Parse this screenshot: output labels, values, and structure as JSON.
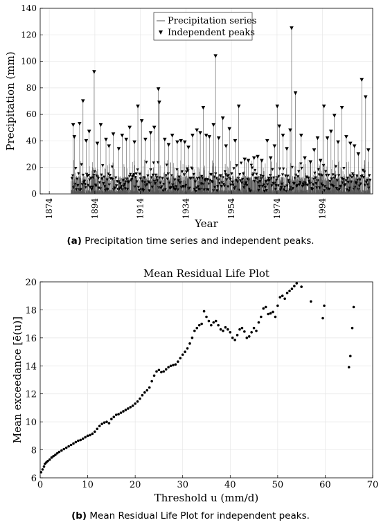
{
  "captions": {
    "a_tag": "(a)",
    "a_text": " Precipitation time series and independent peaks.",
    "b_tag": "(b)",
    "b_text": " Mean Residual Life Plot for independent peaks."
  },
  "chart_data": [
    {
      "type": "line",
      "title": "",
      "xlabel": "Year",
      "ylabel": "Precipitation (mm)",
      "xlim": [
        1870,
        2016
      ],
      "ylim": [
        0,
        140
      ],
      "xticks": [
        1874,
        1894,
        1914,
        1934,
        1954,
        1974,
        1994
      ],
      "yticks": [
        0,
        20,
        40,
        60,
        80,
        100,
        120,
        140
      ],
      "grid": true,
      "legend": {
        "position": "top-center",
        "entries": [
          "Precipitation series",
          "Independent peaks"
        ]
      },
      "colors": {
        "series": "#555555",
        "peaks": "#000000"
      },
      "series": [
        {
          "name": "Precipitation series",
          "kind": "line",
          "x_range": [
            1874,
            2015
          ]
        },
        {
          "name": "Independent peaks",
          "kind": "markers",
          "x": [
            1884.5,
            1885.0,
            1887.3,
            1888.8,
            1890.2,
            1891.5,
            1893.7,
            1895.1,
            1896.6,
            1898.9,
            1900.2,
            1902.1,
            1904.5,
            1906.0,
            1907.8,
            1909.3,
            1911.4,
            1912.9,
            1914.6,
            1916.2,
            1918.5,
            1920.1,
            1921.9,
            1922.3,
            1924.7,
            1926.4,
            1928.0,
            1930.2,
            1931.8,
            1933.5,
            1935.1,
            1936.9,
            1938.8,
            1940.3,
            1941.6,
            1942.9,
            1944.3,
            1946.1,
            1947.0,
            1948.4,
            1950.2,
            1951.6,
            1953.1,
            1955.6,
            1957.2,
            1959.8,
            1961.4,
            1963.9,
            1965.5,
            1967.3,
            1969.7,
            1971.2,
            1972.9,
            1974.1,
            1975.0,
            1976.6,
            1978.3,
            1979.8,
            1980.4,
            1982.1,
            1984.6,
            1986.2,
            1988.7,
            1990.3,
            1991.8,
            1993.1,
            1994.6,
            1996.1,
            1997.7,
            1999.2,
            2000.8,
            2002.5,
            2004.4,
            2006.2,
            2008.0,
            2009.7,
            2011.2,
            2012.9,
            2014.1
          ],
          "y": [
            52,
            43,
            53,
            70,
            40,
            47,
            92,
            38,
            52,
            41,
            36,
            45,
            34,
            44,
            41,
            50,
            39,
            66,
            55,
            41,
            46,
            50,
            79,
            69,
            41,
            37,
            44,
            39,
            40,
            39,
            35,
            44,
            48,
            46,
            65,
            44,
            43,
            52,
            104,
            42,
            57,
            36,
            49,
            40,
            66,
            26,
            25,
            27,
            28,
            25,
            40,
            27,
            36,
            66,
            51,
            44,
            34,
            48,
            125,
            76,
            44,
            27,
            24,
            33,
            42,
            25,
            66,
            42,
            47,
            59,
            39,
            65,
            43,
            38,
            36,
            30,
            86,
            73,
            33
          ]
        }
      ]
    },
    {
      "type": "scatter",
      "title": "Mean Residual Life Plot",
      "xlabel": "Threshold u (mm/d)",
      "ylabel": "Mean exceedance [ē(u)]",
      "xlim": [
        0,
        70
      ],
      "ylim": [
        6,
        20
      ],
      "xticks": [
        0,
        10,
        20,
        30,
        40,
        50,
        60,
        70
      ],
      "yticks": [
        6,
        8,
        10,
        12,
        14,
        16,
        18,
        20
      ],
      "grid": true,
      "colors": {
        "points": "#000000"
      },
      "series": [
        {
          "name": "",
          "x": [
            0.2,
            0.5,
            0.8,
            1.0,
            1.3,
            1.6,
            2.0,
            2.4,
            2.8,
            3.2,
            3.6,
            4.0,
            4.5,
            5.0,
            5.5,
            6.0,
            6.5,
            7.0,
            7.5,
            8.0,
            8.5,
            9.0,
            9.5,
            10.0,
            10.5,
            11.0,
            11.5,
            12.0,
            12.5,
            13.0,
            13.5,
            14.0,
            14.5,
            15.0,
            15.5,
            16.0,
            16.5,
            17.0,
            17.5,
            18.0,
            18.5,
            19.0,
            19.5,
            20.0,
            20.5,
            21.0,
            21.5,
            22.0,
            22.5,
            23.0,
            23.5,
            24.0,
            24.5,
            25.0,
            25.5,
            26.0,
            26.5,
            27.0,
            27.5,
            28.0,
            28.5,
            29.0,
            29.5,
            30.0,
            30.5,
            31.0,
            31.5,
            32.0,
            32.5,
            33.0,
            33.5,
            34.0,
            34.5,
            35.0,
            35.5,
            36.0,
            36.5,
            37.0,
            37.5,
            38.0,
            38.5,
            39.0,
            39.5,
            40.0,
            40.5,
            41.0,
            41.5,
            42.0,
            42.5,
            43.0,
            43.5,
            44.0,
            44.5,
            45.0,
            45.5,
            46.0,
            46.5,
            47.0,
            47.5,
            48.0,
            48.5,
            49.0,
            49.5,
            50.0,
            50.5,
            51.0,
            51.5,
            52.0,
            52.5,
            53.0,
            53.5,
            54.0,
            55.0,
            57.0,
            59.5,
            59.8,
            65.0,
            65.3,
            65.7,
            66.0
          ],
          "y": [
            6.4,
            6.6,
            6.8,
            7.0,
            7.1,
            7.2,
            7.3,
            7.45,
            7.55,
            7.65,
            7.75,
            7.85,
            7.95,
            8.05,
            8.15,
            8.25,
            8.35,
            8.45,
            8.55,
            8.65,
            8.7,
            8.8,
            8.9,
            9.0,
            9.05,
            9.15,
            9.3,
            9.5,
            9.7,
            9.85,
            9.95,
            10.0,
            9.9,
            10.2,
            10.35,
            10.5,
            10.55,
            10.65,
            10.75,
            10.85,
            10.95,
            11.05,
            11.15,
            11.3,
            11.45,
            11.65,
            11.9,
            12.1,
            12.25,
            12.45,
            12.9,
            13.3,
            13.6,
            13.7,
            13.55,
            13.6,
            13.75,
            13.9,
            14.0,
            14.05,
            14.1,
            14.3,
            14.55,
            14.8,
            15.0,
            15.25,
            15.6,
            16.0,
            16.5,
            16.7,
            16.9,
            17.0,
            17.9,
            17.5,
            17.2,
            16.9,
            17.1,
            17.2,
            16.9,
            16.6,
            16.5,
            16.75,
            16.6,
            16.4,
            16.0,
            15.85,
            16.2,
            16.6,
            16.7,
            16.45,
            16.0,
            16.1,
            16.4,
            16.7,
            16.5,
            17.1,
            17.5,
            18.1,
            18.2,
            17.7,
            17.75,
            17.85,
            17.5,
            18.3,
            18.9,
            19.0,
            18.8,
            19.2,
            19.35,
            19.5,
            19.7,
            19.9,
            19.65,
            18.6,
            17.4,
            18.3,
            13.9,
            14.7,
            16.7,
            18.2
          ]
        }
      ]
    }
  ]
}
